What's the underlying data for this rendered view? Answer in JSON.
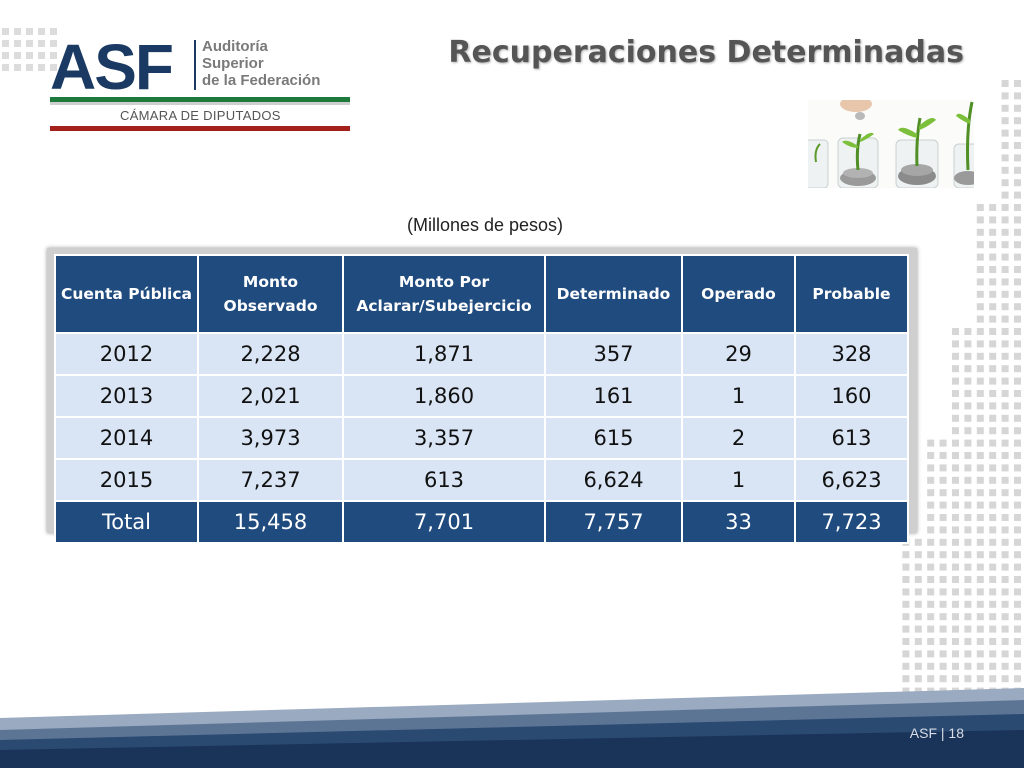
{
  "header": {
    "title": "Recuperaciones Determinadas"
  },
  "logo": {
    "mark": "ASF",
    "lines": [
      "Auditoría",
      "Superior",
      "de la Federación"
    ],
    "chamber": "CÁMARA DE DIPUTADOS"
  },
  "table": {
    "caption": "(Millones de pesos)",
    "headers": [
      "Cuenta Pública",
      "Monto Observado",
      "Monto Por Aclarar/Subejercicio",
      "Determinado",
      "Operado",
      "Probable"
    ],
    "rows": [
      [
        "2012",
        "2,228",
        "1,871",
        "357",
        "29",
        "328"
      ],
      [
        "2013",
        "2,021",
        "1,860",
        "161",
        "1",
        "160"
      ],
      [
        "2014",
        "3,973",
        "3,357",
        "615",
        "2",
        "613"
      ],
      [
        "2015",
        "7,237",
        "613",
        "6,624",
        "1",
        "6,623"
      ]
    ],
    "total": [
      "Total",
      "15,458",
      "7,701",
      "7,757",
      "33",
      "7,723"
    ]
  },
  "footer": {
    "label": "ASF | 18"
  },
  "colors": {
    "header_bg": "#1f4b7e",
    "row_bg": "#d9e5f5",
    "brand_navy": "#1a3a63",
    "brand_green": "#1d7a3a",
    "brand_red": "#a4201b"
  },
  "icons": [
    "coin-jars-photo"
  ]
}
